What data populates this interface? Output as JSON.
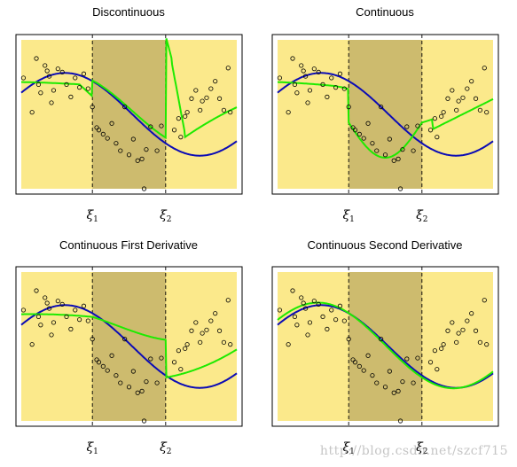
{
  "watermark": "http://blog.csdn.net/szcf715",
  "style": {
    "outer_region_color": "#fbe98b",
    "middle_region_color": "#cdbb6e",
    "truth_color": "#0b0bb5",
    "fit_color": "#1eea00",
    "point_color": "#000000"
  },
  "chart_data": [
    {
      "type": "scatter",
      "title": "Discontinuous",
      "knots": [
        {
          "label": "ξ",
          "sub": "1",
          "x": 0.33
        },
        {
          "label": "ξ",
          "sub": "2",
          "x": 0.67
        }
      ],
      "xlim": [
        0,
        1
      ],
      "ylim": [
        -1.8,
        1.8
      ],
      "fit_type": "piecewise-cubic-discontinuous",
      "series": [
        {
          "role": "truth",
          "kind": "line",
          "equation": "sin(1.6*pi*x + 0.55)"
        },
        {
          "role": "fit",
          "kind": "line",
          "equation": "piecewise cubic, unconstrained at knots"
        },
        {
          "role": "data",
          "kind": "points"
        }
      ]
    },
    {
      "type": "scatter",
      "title": "Continuous",
      "knots": [
        {
          "label": "ξ",
          "sub": "1",
          "x": 0.33
        },
        {
          "label": "ξ",
          "sub": "2",
          "x": 0.67
        }
      ],
      "xlim": [
        0,
        1
      ],
      "ylim": [
        -1.8,
        1.8
      ],
      "fit_type": "piecewise-cubic-continuous",
      "series": [
        {
          "role": "truth",
          "kind": "line"
        },
        {
          "role": "fit",
          "kind": "line"
        },
        {
          "role": "data",
          "kind": "points"
        }
      ]
    },
    {
      "type": "scatter",
      "title": "Continuous First Derivative",
      "knots": [
        {
          "label": "ξ",
          "sub": "1",
          "x": 0.33
        },
        {
          "label": "ξ",
          "sub": "2",
          "x": 0.67
        }
      ],
      "xlim": [
        0,
        1
      ],
      "ylim": [
        -1.8,
        1.8
      ],
      "fit_type": "piecewise-cubic-continuous-first-derivative",
      "series": [
        {
          "role": "truth",
          "kind": "line"
        },
        {
          "role": "fit",
          "kind": "line"
        },
        {
          "role": "data",
          "kind": "points"
        }
      ]
    },
    {
      "type": "scatter",
      "title": "Continuous Second Derivative",
      "knots": [
        {
          "label": "ξ",
          "sub": "1",
          "x": 0.33
        },
        {
          "label": "ξ",
          "sub": "2",
          "x": 0.67
        }
      ],
      "xlim": [
        0,
        1
      ],
      "ylim": [
        -1.8,
        1.8
      ],
      "fit_type": "cubic-spline",
      "series": [
        {
          "role": "truth",
          "kind": "line"
        },
        {
          "role": "fit",
          "kind": "line"
        },
        {
          "role": "data",
          "kind": "points"
        }
      ]
    }
  ],
  "data_points": [
    [
      0.01,
      0.88
    ],
    [
      0.05,
      0.05
    ],
    [
      0.07,
      1.35
    ],
    [
      0.08,
      0.72
    ],
    [
      0.09,
      0.52
    ],
    [
      0.11,
      1.18
    ],
    [
      0.12,
      1.05
    ],
    [
      0.13,
      0.92
    ],
    [
      0.14,
      0.28
    ],
    [
      0.15,
      0.58
    ],
    [
      0.17,
      1.1
    ],
    [
      0.19,
      1.02
    ],
    [
      0.21,
      0.72
    ],
    [
      0.23,
      0.42
    ],
    [
      0.25,
      0.88
    ],
    [
      0.27,
      0.65
    ],
    [
      0.29,
      0.98
    ],
    [
      0.31,
      0.62
    ],
    [
      0.33,
      0.18
    ],
    [
      0.35,
      -0.32
    ],
    [
      0.36,
      -0.38
    ],
    [
      0.38,
      -0.48
    ],
    [
      0.4,
      -0.58
    ],
    [
      0.42,
      -0.22
    ],
    [
      0.44,
      -0.7
    ],
    [
      0.46,
      -0.88
    ],
    [
      0.48,
      0.18
    ],
    [
      0.5,
      -0.98
    ],
    [
      0.52,
      -0.6
    ],
    [
      0.54,
      -1.12
    ],
    [
      0.56,
      -1.08
    ],
    [
      0.57,
      -1.8
    ],
    [
      0.58,
      -0.85
    ],
    [
      0.6,
      -0.3
    ],
    [
      0.63,
      -0.88
    ],
    [
      0.65,
      -0.28
    ],
    [
      0.71,
      -0.38
    ],
    [
      0.73,
      -0.1
    ],
    [
      0.74,
      -0.55
    ],
    [
      0.76,
      -0.05
    ],
    [
      0.77,
      0.05
    ],
    [
      0.79,
      0.38
    ],
    [
      0.81,
      0.58
    ],
    [
      0.83,
      0.1
    ],
    [
      0.84,
      0.32
    ],
    [
      0.86,
      0.4
    ],
    [
      0.88,
      0.62
    ],
    [
      0.9,
      0.8
    ],
    [
      0.92,
      0.38
    ],
    [
      0.94,
      0.1
    ],
    [
      0.96,
      1.12
    ],
    [
      0.97,
      0.05
    ]
  ]
}
